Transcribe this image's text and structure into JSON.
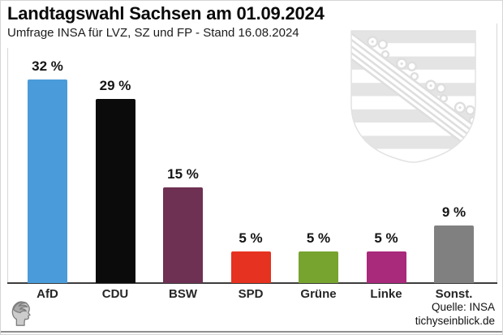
{
  "header": {
    "title": "Landtagswahl Sachsen am 01.09.2024",
    "subtitle": "Umfrage INSA für LVZ, SZ und FP - Stand 16.08.2024"
  },
  "footer": {
    "source": "Quelle: INSA",
    "website": "tichyseinblick.de"
  },
  "watermark": {
    "name": "Wappen Sachsen (coat of arms, light gray)"
  },
  "chart_data": {
    "type": "bar",
    "title": "Landtagswahl Sachsen am 01.09.2024",
    "subtitle": "Umfrage INSA für LVZ, SZ und FP - Stand 16.08.2024",
    "categories": [
      "AfD",
      "CDU",
      "BSW",
      "SPD",
      "Grüne",
      "Linke",
      "Sonst."
    ],
    "values": [
      32,
      29,
      15,
      5,
      5,
      5,
      9
    ],
    "value_suffix": " %",
    "bar_colors": [
      "#4A9BD9",
      "#0B0B0B",
      "#6E3153",
      "#E63220",
      "#77A32F",
      "#A9297B",
      "#808080"
    ],
    "xlabel": "",
    "ylabel": "",
    "ylim": [
      0,
      36
    ],
    "grid": false,
    "legend": false,
    "source": "Quelle: INSA"
  }
}
